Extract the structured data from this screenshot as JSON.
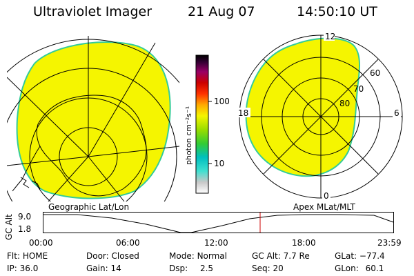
{
  "header": {
    "title": "Ultraviolet Imager",
    "date": "21 Aug 07",
    "time": "14:50:10 UT"
  },
  "colorbar": {
    "unit_label": "photon cm⁻²s⁻¹",
    "ticks": [
      "100",
      "10"
    ]
  },
  "polar": {
    "labels": {
      "top": "12",
      "left": "18",
      "right": "6",
      "bottom": "0"
    },
    "rings": [
      "60",
      "70",
      "80"
    ]
  },
  "captions": {
    "geo": "Geographic Lat/Lon",
    "apex": "Apex  MLat/MLT"
  },
  "timeline": {
    "y_title": "GC Alt",
    "y_max": "9.0",
    "y_min": "1.8",
    "ticks": [
      "00:00",
      "06:00",
      "12:00",
      "18:00",
      "23:59"
    ],
    "current_marker_time": "14:50"
  },
  "status": {
    "flt_label": "Flt:",
    "flt_value": "HOME",
    "door_label": "Door:",
    "door_value": "Closed",
    "mode_label": "Mode:",
    "mode_value": "Normal",
    "gcalt_label": "GC Alt:",
    "gcalt_value": "7.7 Re",
    "glat_label": "GLat:",
    "glat_value": "−77.4",
    "ip_label": "IP:",
    "ip_value": "36.0",
    "gain_label": "Gain:",
    "gain_value": "14",
    "dsp_label": "Dsp:",
    "dsp_value": "2.5",
    "seq_label": "Seq:",
    "seq_value": "20",
    "glon_label": "GLon:",
    "glon_value": "60.1"
  },
  "colors": {
    "aurora": "#f5f500",
    "edge": "#33cc99",
    "marker": "#cc0000"
  }
}
